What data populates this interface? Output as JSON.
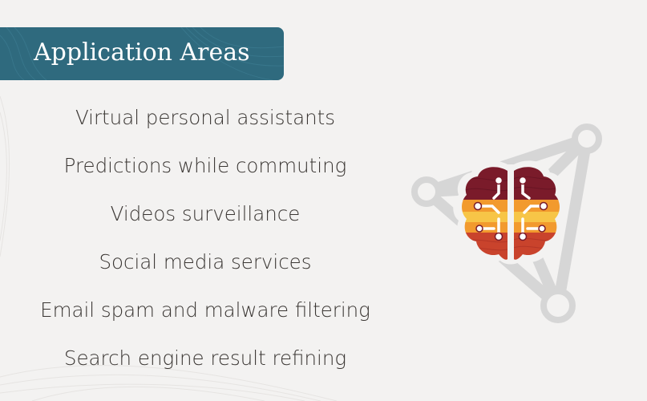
{
  "header": {
    "title": "Application Areas"
  },
  "areas": [
    "Virtual personal assistants",
    "Predictions while commuting",
    "Videos surveillance",
    "Social media services",
    "Email spam and malware filtering",
    "Search engine result refining"
  ],
  "graphic": {
    "icon": "ai-brain-network-icon"
  },
  "colors": {
    "banner": "#2f6a7e",
    "background": "#f3f2f1",
    "text": "#3a3633",
    "network_gray": "#d3d3d3",
    "brain_dark": "#7a1b2a",
    "brain_orange": "#f29a2e",
    "brain_yellow": "#f7c547",
    "brain_red": "#c9432c"
  }
}
